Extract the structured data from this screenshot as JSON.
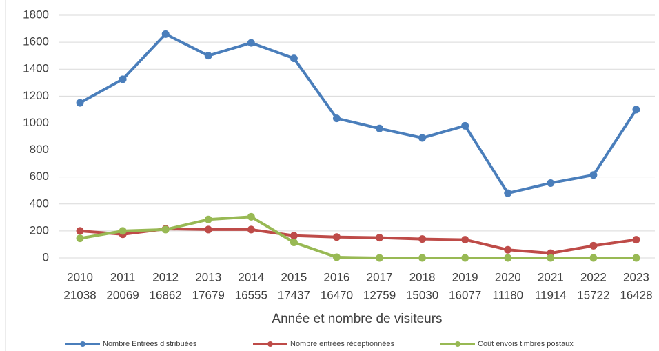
{
  "chart_data": {
    "type": "line",
    "x_label": "Année et nombre de visiteurs",
    "categories": [
      [
        "2010",
        "21038"
      ],
      [
        "2011",
        "20069"
      ],
      [
        "2012",
        "16862"
      ],
      [
        "2013",
        "17679"
      ],
      [
        "2014",
        "16555"
      ],
      [
        "2015",
        "17437"
      ],
      [
        "2016",
        "16470"
      ],
      [
        "2017",
        "12759"
      ],
      [
        "2018",
        "15030"
      ],
      [
        "2019",
        "16077"
      ],
      [
        "2020",
        "11180"
      ],
      [
        "2021",
        "11914"
      ],
      [
        "2022",
        "15722"
      ],
      [
        "2023",
        "16428"
      ]
    ],
    "series": [
      {
        "name": "Nombre Entrées distribuées",
        "color": "#4a7ebb",
        "values": [
          1150,
          1325,
          1660,
          1500,
          1595,
          1480,
          1035,
          960,
          890,
          980,
          480,
          555,
          615,
          1100
        ]
      },
      {
        "name": "Nombre entrées réceptionnées",
        "color": "#be4b48",
        "values": [
          200,
          175,
          215,
          210,
          210,
          165,
          155,
          150,
          140,
          135,
          60,
          35,
          90,
          135
        ]
      },
      {
        "name": "Coût envois timbres postaux",
        "color": "#98b954",
        "values": [
          145,
          200,
          210,
          285,
          305,
          115,
          5,
          0,
          0,
          0,
          0,
          0,
          0,
          0
        ]
      }
    ],
    "ylim": [
      0,
      1800
    ],
    "yticks": [
      0,
      200,
      400,
      600,
      800,
      1000,
      1200,
      1400,
      1600,
      1800
    ],
    "grid": true,
    "legend": "bottom"
  }
}
